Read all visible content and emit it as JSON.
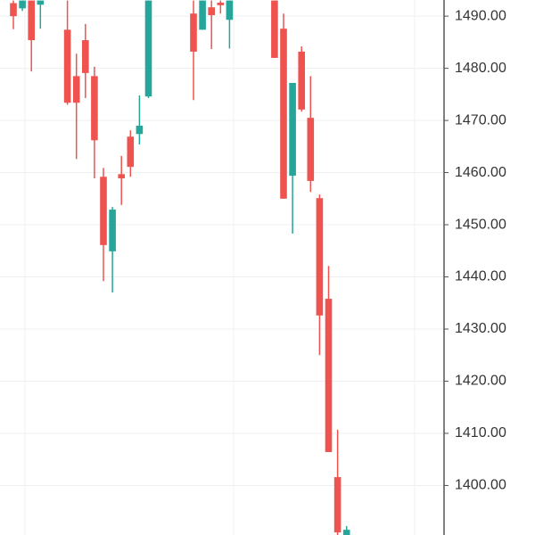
{
  "chart_data": {
    "type": "candlestick",
    "categories": [
      null,
      null,
      null,
      null,
      null,
      null,
      null,
      null,
      null,
      null,
      null,
      null,
      null,
      null,
      null,
      null,
      null,
      null,
      null,
      null,
      null,
      null,
      null,
      null,
      null,
      null,
      null,
      null,
      null,
      null,
      null,
      null,
      null,
      null,
      null,
      null,
      null,
      null
    ],
    "open": [
      1492.5,
      1491.5,
      1493,
      1492.2,
      null,
      null,
      1487.4,
      1478.5,
      1485.4,
      1478.5,
      1459.2,
      1444.9,
      1459.7,
      1466.9,
      1467.4,
      1474.6,
      null,
      null,
      null,
      null,
      1490.5,
      1487.4,
      1491.7,
      1492.6,
      1489.3,
      null,
      null,
      null,
      null,
      1493,
      1487.6,
      1459.4,
      1483.2,
      1470.5,
      1455.1,
      1435.8,
      1401.6,
      1390.5
    ],
    "high": [
      1493,
      1493,
      1493,
      1493,
      null,
      null,
      1493,
      1482.8,
      1488.5,
      1480.3,
      1460.9,
      1453.4,
      1463.2,
      1468.1,
      1474.8,
      1493,
      null,
      null,
      null,
      null,
      1493,
      1493,
      1493,
      1493,
      1493,
      null,
      null,
      null,
      null,
      1493,
      1490.5,
      1477.2,
      1484.2,
      1478.5,
      1455.8,
      1442.1,
      1410.7,
      1392.2
    ],
    "low": [
      1487.5,
      1491,
      1479.4,
      1487.6,
      null,
      null,
      1473,
      1462.6,
      1474.3,
      1458.9,
      1439.2,
      1437,
      1453.8,
      1459.2,
      1465.4,
      1474.3,
      null,
      null,
      null,
      null,
      1473.9,
      1487.4,
      1483.7,
      1490.5,
      1483.8,
      null,
      null,
      null,
      null,
      1482,
      1455,
      1448.3,
      1471.7,
      1456.3,
      1425,
      1406.4,
      1390.5,
      1390.5
    ],
    "close": [
      1490,
      1493,
      1485.4,
      1493,
      null,
      null,
      1473.4,
      1473.4,
      1479.1,
      1466.2,
      1446.1,
      1452.9,
      1458.9,
      1461.1,
      1469,
      1493,
      null,
      null,
      null,
      null,
      1483.2,
      1493,
      1490.2,
      1492.1,
      1493,
      null,
      null,
      null,
      null,
      1482,
      1455,
      1477.2,
      1472.1,
      1458.4,
      1432.6,
      1406.4,
      1391,
      1391.5
    ],
    "up_color": "#26a69a",
    "down_color": "#ef5350",
    "ylim": [
      1390.5,
      1493.1
    ],
    "yticks": [
      {
        "value": 1400,
        "label": "1400.00"
      },
      {
        "value": 1410,
        "label": "1410.00"
      },
      {
        "value": 1420,
        "label": "1420.00"
      },
      {
        "value": 1430,
        "label": "1430.00"
      },
      {
        "value": 1440,
        "label": "1440.00"
      },
      {
        "value": 1450,
        "label": "1450.00"
      },
      {
        "value": 1460,
        "label": "1460.00"
      },
      {
        "value": 1470,
        "label": "1470.00"
      },
      {
        "value": 1480,
        "label": "1480.00"
      },
      {
        "value": 1490,
        "label": "1490.00"
      }
    ],
    "grid": true,
    "y_axis_side": "right"
  }
}
